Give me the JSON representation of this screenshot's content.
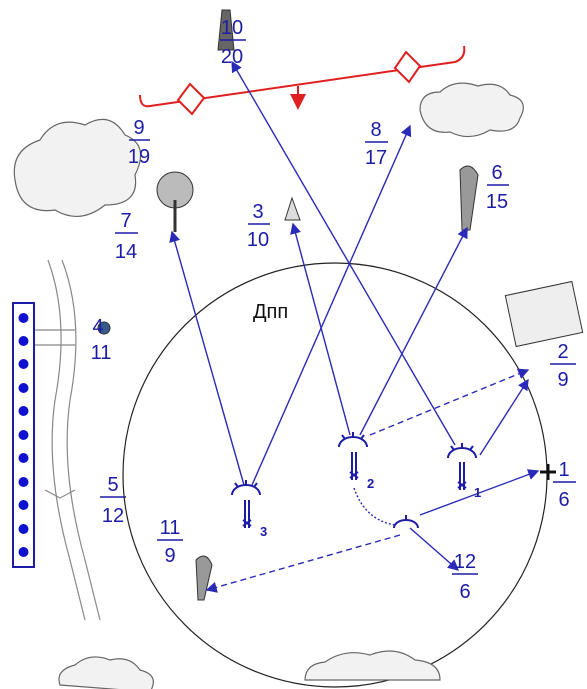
{
  "area_label": "Дпп",
  "landmarks": [
    {
      "number": 10,
      "distance": 20
    },
    {
      "number": 9,
      "distance": 19
    },
    {
      "number": 8,
      "distance": 17
    },
    {
      "number": 6,
      "distance": 15
    },
    {
      "number": 7,
      "distance": 14
    },
    {
      "number": 3,
      "distance": 10
    },
    {
      "number": 4,
      "distance": 11
    },
    {
      "number": 2,
      "distance": 9
    },
    {
      "number": 1,
      "distance": 6
    },
    {
      "number": 5,
      "distance": 12
    },
    {
      "number": 11,
      "distance": 9
    },
    {
      "number": 12,
      "distance": 6
    }
  ],
  "positions": [
    {
      "label": 1
    },
    {
      "label": 2
    },
    {
      "label": 3
    }
  ]
}
